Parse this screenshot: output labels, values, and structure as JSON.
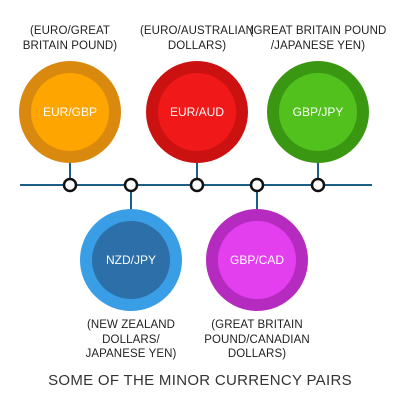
{
  "pairs_top": [
    {
      "code": "EUR/GBP",
      "description": "(EURO/GREAT\nBRITAIN POUND)",
      "outer_color": "#d98a0e",
      "inner_color": "#ffa500"
    },
    {
      "code": "EUR/AUD",
      "description": "(EURO/AUSTRALIAN\nDOLLARS)",
      "outer_color": "#cc1111",
      "inner_color": "#f01818"
    },
    {
      "code": "GBP/JPY",
      "description": "(GREAT BRITAIN POUND\n/JAPANESE YEN)",
      "outer_color": "#3a9712",
      "inner_color": "#52c11e"
    }
  ],
  "pairs_bottom": [
    {
      "code": "NZD/JPY",
      "description": "(NEW ZEALAND\nDOLLARS/\nJAPANESE YEN)",
      "outer_color": "#3a9ee6",
      "inner_color": "#2d6fa8"
    },
    {
      "code": "GBP/CAD",
      "description": "(GREAT BRITAIN\nPOUND/CANADIAN\nDOLLARS)",
      "outer_color": "#b52bc0",
      "inner_color": "#e43fee"
    }
  ],
  "caption": "SOME OF THE MINOR CURRENCY PAIRS",
  "colors": {
    "timeline": "#1b5e86",
    "node_fill": "#ffffff",
    "node_stroke": "#111111"
  }
}
